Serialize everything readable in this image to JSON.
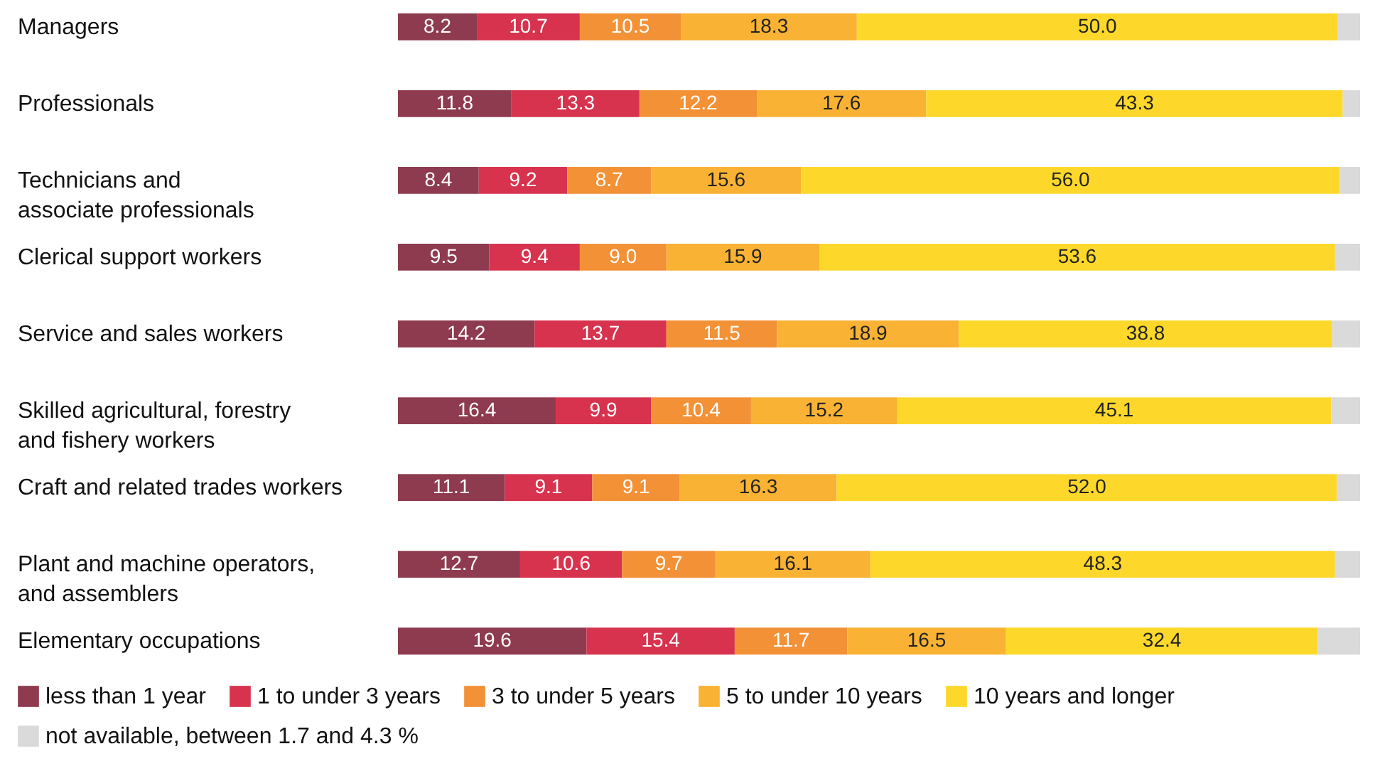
{
  "chart_data": {
    "type": "bar",
    "orientation": "horizontal",
    "stacked": true,
    "data_labels": true,
    "legend": "bottom",
    "categories": [
      "Managers",
      "Professionals",
      "Technicians and\nassociate professionals",
      "Clerical support workers",
      "Service and sales workers",
      "Skilled agricultural, forestry\nand fishery workers",
      "Craft and related trades workers",
      "Plant and machine operators,\nand assemblers",
      "Elementary occupations"
    ],
    "series": [
      {
        "name": "less than 1 year",
        "color": "#8e3b4f",
        "values": [
          8.2,
          11.8,
          8.4,
          9.5,
          14.2,
          16.4,
          11.1,
          12.7,
          19.6
        ],
        "value_labels": [
          "8.2",
          "11.8",
          "8.4",
          "9.5",
          "14.2",
          "16.4",
          "11.1",
          "12.7",
          "19.6"
        ]
      },
      {
        "name": "1 to under 3 years",
        "color": "#d7334e",
        "values": [
          10.7,
          13.3,
          9.2,
          9.4,
          13.7,
          9.9,
          9.1,
          10.6,
          15.4
        ],
        "value_labels": [
          "10.7",
          "13.3",
          "9.2",
          "9.4",
          "13.7",
          "9.9",
          "9.1",
          "10.6",
          "15.4"
        ]
      },
      {
        "name": "3 to under 5 years",
        "color": "#f39136",
        "values": [
          10.5,
          12.2,
          8.7,
          9.0,
          11.5,
          10.4,
          9.1,
          9.7,
          11.7
        ],
        "value_labels": [
          "10.5",
          "12.2",
          "8.7",
          "9.0",
          "11.5",
          "10.4",
          "9.1",
          "9.7",
          "11.7"
        ]
      },
      {
        "name": "5 to under 10 years",
        "color": "#f9b233",
        "values": [
          18.3,
          17.6,
          15.6,
          15.9,
          18.9,
          15.2,
          16.3,
          16.1,
          16.5
        ],
        "value_labels": [
          "18.3",
          "17.6",
          "15.6",
          "15.9",
          "18.9",
          "15.2",
          "16.3",
          "16.1",
          "16.5"
        ]
      },
      {
        "name": "10 years and longer",
        "color": "#fdd82b",
        "values": [
          50.0,
          43.3,
          56.0,
          53.6,
          38.8,
          45.1,
          52.0,
          48.3,
          32.4
        ],
        "value_labels": [
          "50.0",
          "43.3",
          "56.0",
          "53.6",
          "38.8",
          "45.1",
          "52.0",
          "48.3",
          "32.4"
        ]
      },
      {
        "name": "not available, between 1.7 and 4.3 %",
        "color": "#dadada",
        "values": [
          2.3,
          1.8,
          2.1,
          2.6,
          2.9,
          3.0,
          2.4,
          2.6,
          4.4
        ],
        "value_labels": [
          null,
          null,
          null,
          null,
          null,
          null,
          null,
          null,
          null
        ]
      }
    ]
  }
}
